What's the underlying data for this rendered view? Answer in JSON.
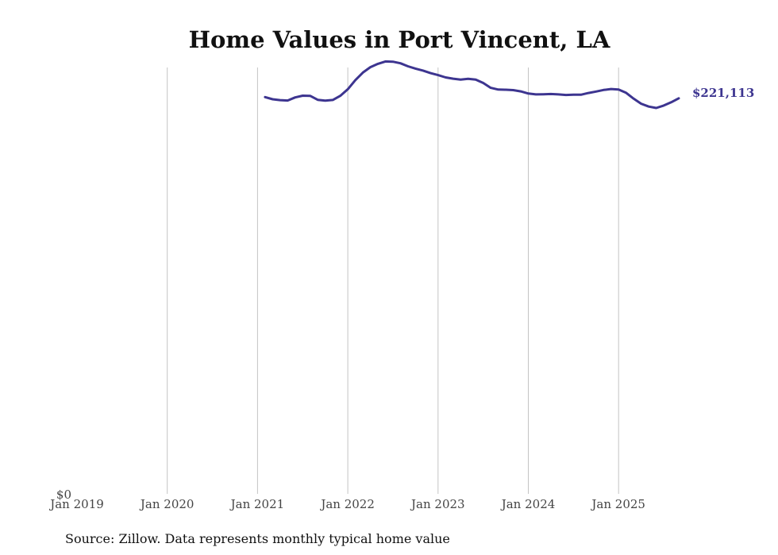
{
  "chart_data": {
    "type": "line",
    "title": "Home Values in Port Vincent, LA",
    "source": "Source: Zillow. Data represents monthly typical home value",
    "xlabel": "",
    "ylabel": "",
    "x_ticks": [
      "Jan 2019",
      "Jan 2020",
      "Jan 2021",
      "Jan 2022",
      "Jan 2023",
      "Jan 2024",
      "Jan 2025"
    ],
    "y_tick_label": "$0",
    "ylim": [
      0,
      245000
    ],
    "x_start_year": 2019,
    "grid": "vertical",
    "line_color": "#3d3590",
    "end_label": "$221,113",
    "series": [
      {
        "name": "Typical home value",
        "start": "2021-02",
        "values": [
          221800,
          220600,
          220100,
          219900,
          221600,
          222600,
          222500,
          220300,
          219800,
          220200,
          222500,
          226200,
          231300,
          235500,
          238500,
          240400,
          241700,
          241600,
          240700,
          239000,
          237700,
          236600,
          235200,
          234100,
          232800,
          232100,
          231600,
          232000,
          231600,
          229700,
          227000,
          226000,
          225900,
          225700,
          225000,
          223800,
          223300,
          223400,
          223500,
          223300,
          223000,
          223100,
          223100,
          224100,
          224900,
          225800,
          226300,
          226000,
          224200,
          220900,
          218100,
          216500,
          215700,
          217100,
          218900,
          221113
        ]
      }
    ]
  }
}
